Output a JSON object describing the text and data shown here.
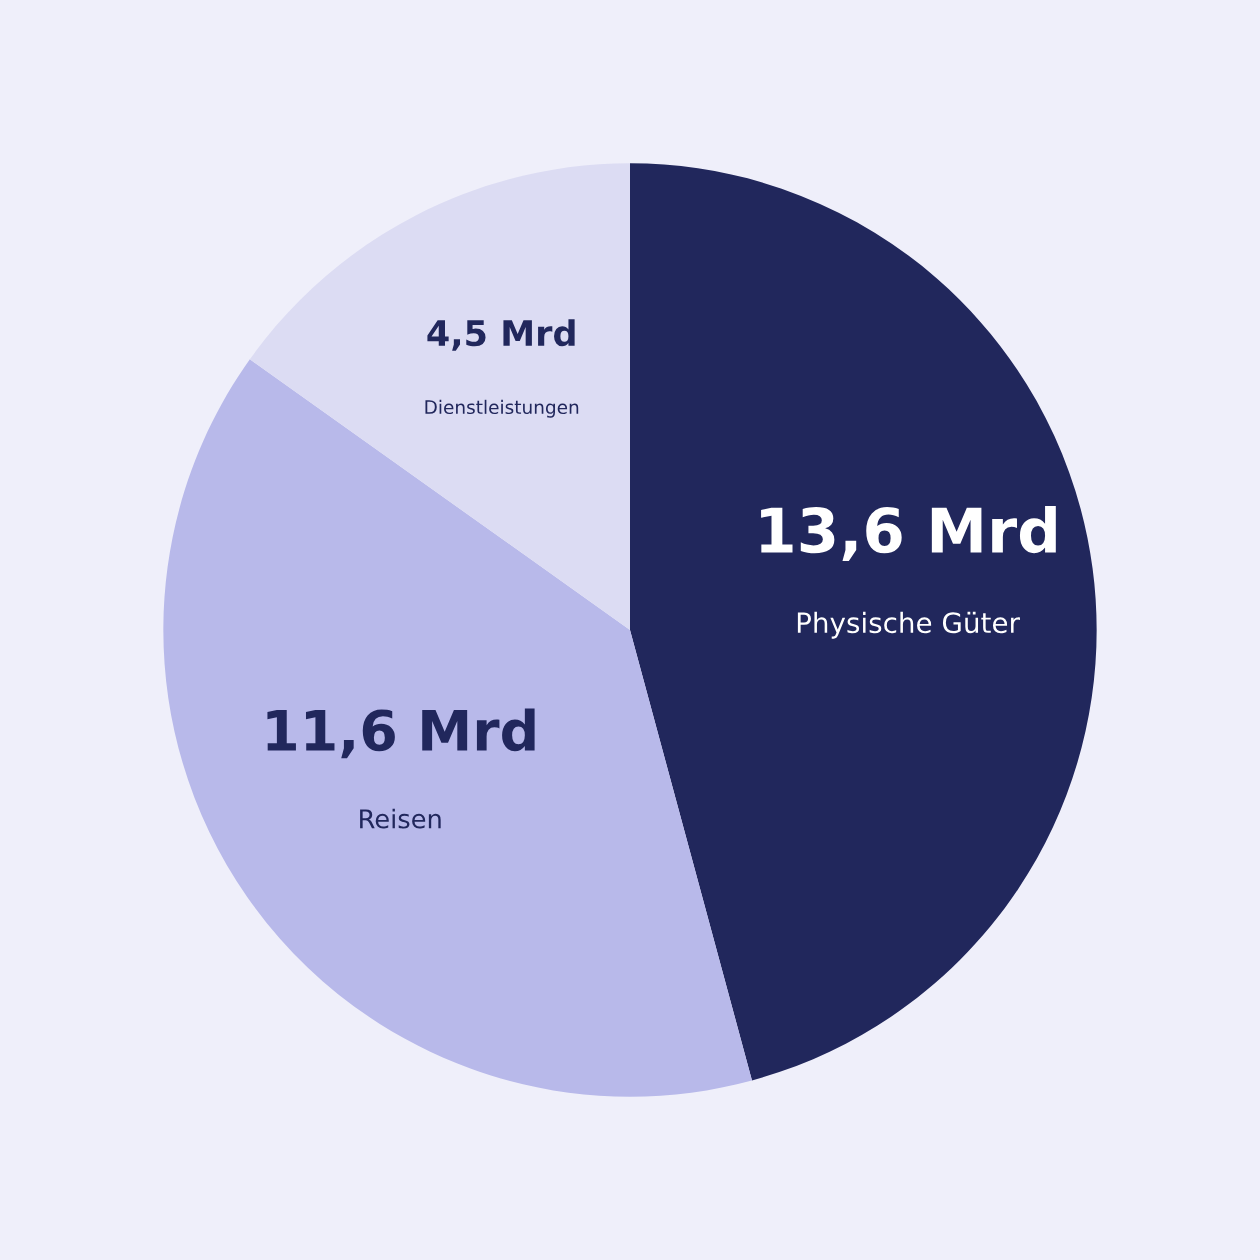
{
  "chart_data": {
    "type": "pie",
    "categories": [
      "Physische Güter",
      "Reisen",
      "Dienstleistungen"
    ],
    "values": [
      13.6,
      11.6,
      4.5
    ],
    "value_labels": [
      "13,6 Mrd",
      "11,6 Mrd",
      "4,5 Mrd"
    ],
    "colors": [
      "#21275c",
      "#b8b9ea",
      "#dcdcf3"
    ],
    "legend": false
  }
}
